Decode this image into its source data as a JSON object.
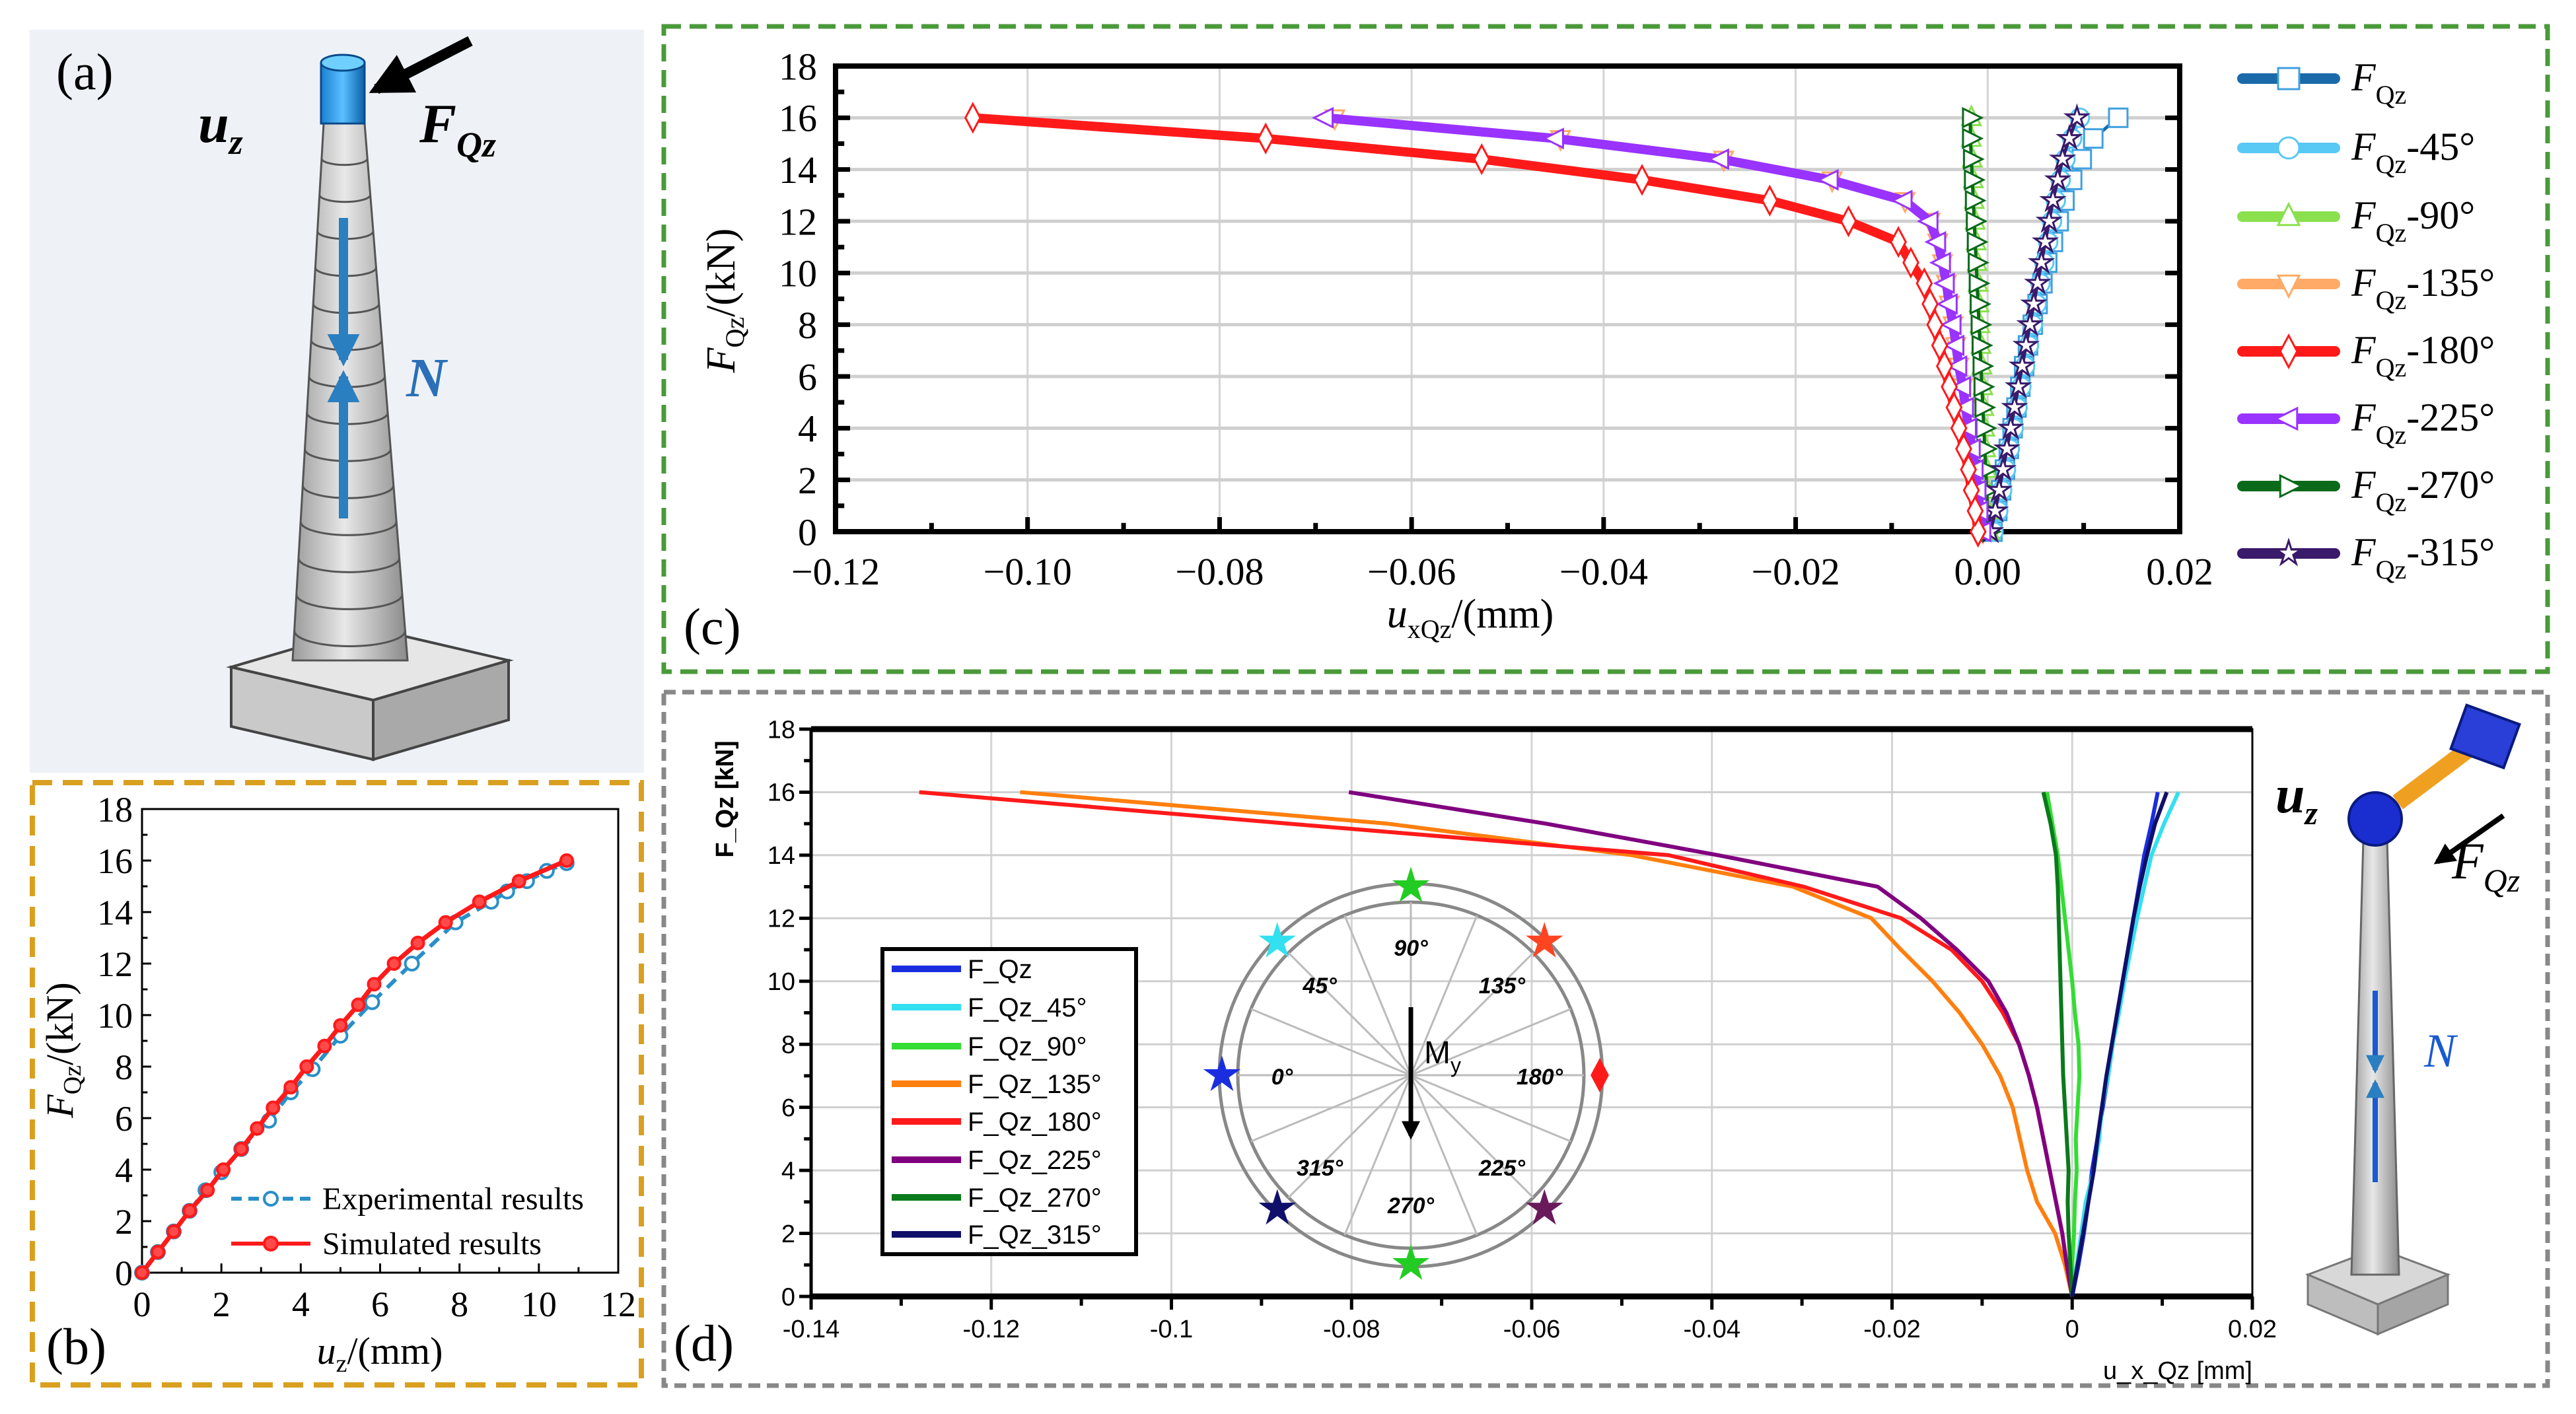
{
  "panels": {
    "a": {
      "tag": "(a)",
      "uz_main": "u",
      "uz_sub": "z",
      "fqz_main": "F",
      "fqz_sub": "Qz",
      "n_label": "N"
    },
    "b": {
      "tag": "(b)"
    },
    "c": {
      "tag": "(c)"
    },
    "d": {
      "tag": "(d)",
      "uz_main": "u",
      "uz_sub": "z",
      "fqz_main": "F",
      "fqz_sub": "Qz",
      "n_label": "N",
      "moment_main": "M",
      "moment_sub": "y",
      "angles": [
        "0°",
        "45°",
        "90°",
        "135°",
        "180°",
        "225°",
        "270°",
        "315°"
      ],
      "angle_colors": [
        "#1a2ee0",
        "#33e0f0",
        "#22cc22",
        "#ff4422",
        "#ff1a1a",
        "#6a1a5a",
        "#22cc22",
        "#10106a"
      ]
    }
  },
  "chart_data": [
    {
      "id": "b",
      "type": "line",
      "ylabel_main": "F",
      "ylabel_sub": "Qz",
      "ylabel_unit": "/(kN)",
      "xlabel_main": "u",
      "xlabel_sub": "z",
      "xlabel_unit": "/(mm)",
      "xlim": [
        0,
        12
      ],
      "ylim": [
        0,
        18
      ],
      "xticks": [
        "0",
        "2",
        "4",
        "6",
        "8",
        "10",
        "12"
      ],
      "yticks": [
        "0",
        "2",
        "4",
        "6",
        "8",
        "10",
        "12",
        "14",
        "16",
        "18"
      ],
      "legend": "bottom-right",
      "series": [
        {
          "name": "Experimental results",
          "color": "#2a8fc8",
          "style": "dashed",
          "marker": "circle",
          "x": [
            0,
            0.4,
            0.8,
            1.2,
            1.6,
            2.0,
            2.5,
            3.2,
            3.75,
            4.3,
            5.0,
            5.8,
            6.8,
            7.9,
            8.8,
            9.2,
            9.7,
            10.2,
            10.7
          ],
          "y": [
            0,
            0.8,
            1.6,
            2.4,
            3.2,
            3.9,
            4.8,
            5.9,
            7.0,
            7.9,
            9.2,
            10.5,
            12.0,
            13.6,
            14.4,
            14.8,
            15.2,
            15.6,
            15.9
          ]
        },
        {
          "name": "Simulated results",
          "color": "#ff1a1a",
          "style": "solid",
          "marker": "circle",
          "x": [
            0,
            0.4,
            0.8,
            1.2,
            1.65,
            2.05,
            2.5,
            2.9,
            3.3,
            3.75,
            4.15,
            4.6,
            5.0,
            5.45,
            5.85,
            6.35,
            6.95,
            7.65,
            8.5,
            9.5,
            10.7
          ],
          "y": [
            0,
            0.8,
            1.6,
            2.4,
            3.2,
            4.0,
            4.8,
            5.6,
            6.4,
            7.2,
            8.0,
            8.8,
            9.6,
            10.4,
            11.2,
            12.0,
            12.8,
            13.6,
            14.4,
            15.2,
            16.0
          ]
        }
      ]
    },
    {
      "id": "c",
      "type": "line",
      "ylabel_main": "F",
      "ylabel_sub": "Qz",
      "ylabel_unit": "/(kN)",
      "xlabel_main": "u",
      "xlabel_sub": "xQz",
      "xlabel_unit": "/(mm)",
      "xlim": [
        -0.12,
        0.02
      ],
      "ylim": [
        0,
        18
      ],
      "xticks": [
        "−0.12",
        "−0.10",
        "−0.08",
        "−0.06",
        "−0.04",
        "−0.02",
        "0.00",
        "0.02"
      ],
      "yticks": [
        "0",
        "2",
        "4",
        "6",
        "8",
        "10",
        "12",
        "14",
        "16",
        "18"
      ],
      "grid": true,
      "legend": "right",
      "y": [
        0,
        0.8,
        1.6,
        2.4,
        3.2,
        4.0,
        4.8,
        5.6,
        6.4,
        7.2,
        8.0,
        8.8,
        9.6,
        10.4,
        11.2,
        12.0,
        12.8,
        13.6,
        14.4,
        15.2,
        16.0
      ],
      "series": [
        {
          "name_main": "F",
          "name_sub": "Qz",
          "name_suffix": "",
          "color": "#1a6aaa",
          "marker_color": "#3fa0e0",
          "marker": "square",
          "x": [
            0.0005,
            0.001,
            0.0014,
            0.0018,
            0.0022,
            0.0026,
            0.003,
            0.0034,
            0.0038,
            0.0042,
            0.0047,
            0.0052,
            0.0057,
            0.0062,
            0.0068,
            0.0074,
            0.008,
            0.0088,
            0.0098,
            0.011,
            0.0136
          ]
        },
        {
          "name_main": "F",
          "name_sub": "Qz",
          "name_suffix": "-45°",
          "color": "#58c8f5",
          "marker_color": "#58c8f5",
          "marker": "circle",
          "x": [
            0.0006,
            0.0011,
            0.0015,
            0.0019,
            0.0023,
            0.0027,
            0.0031,
            0.0035,
            0.0039,
            0.0043,
            0.0047,
            0.0051,
            0.0055,
            0.0059,
            0.0063,
            0.0067,
            0.0071,
            0.0076,
            0.0081,
            0.0088,
            0.0096
          ]
        },
        {
          "name_main": "F",
          "name_sub": "Qz",
          "name_suffix": "-90°",
          "color": "#8be04e",
          "marker_color": "#8be04e",
          "marker": "triangle-up",
          "x": [
            0.0002,
            0.0001,
            0,
            -0.0001,
            -0.0002,
            -0.0003,
            -0.0004,
            -0.0005,
            -0.0006,
            -0.0007,
            -0.0008,
            -0.0009,
            -0.001,
            -0.0011,
            -0.0012,
            -0.0013,
            -0.0014,
            -0.0015,
            -0.0016,
            -0.0017,
            -0.0017
          ]
        },
        {
          "name_main": "F",
          "name_sub": "Qz",
          "name_suffix": "-135°",
          "color": "#ffaa66",
          "marker_color": "#ffaa66",
          "marker": "triangle-down",
          "x": [
            -0.0005,
            -0.0008,
            -0.001,
            -0.0013,
            -0.0016,
            -0.002,
            -0.0023,
            -0.0026,
            -0.003,
            -0.0033,
            -0.0036,
            -0.004,
            -0.0043,
            -0.0047,
            -0.0052,
            -0.006,
            -0.0086,
            -0.0162,
            -0.0275,
            -0.0445,
            -0.068
          ]
        },
        {
          "name_main": "F",
          "name_sub": "Qz",
          "name_suffix": "-180°",
          "color": "#ff1a1a",
          "marker_color": "#ff1a1a",
          "marker": "diamond",
          "x": [
            -0.001,
            -0.0013,
            -0.0017,
            -0.002,
            -0.0025,
            -0.003,
            -0.0035,
            -0.004,
            -0.0045,
            -0.005,
            -0.0055,
            -0.006,
            -0.0066,
            -0.008,
            -0.0093,
            -0.0145,
            -0.0227,
            -0.036,
            -0.0527,
            -0.0752,
            -0.1057
          ]
        },
        {
          "name_main": "F",
          "name_sub": "Qz",
          "name_suffix": "-225°",
          "color": "#9933ff",
          "marker_color": "#9933ff",
          "marker": "triangle-left",
          "x": [
            -0.0005,
            -0.0008,
            -0.001,
            -0.0013,
            -0.0016,
            -0.002,
            -0.0023,
            -0.0026,
            -0.003,
            -0.0033,
            -0.0036,
            -0.004,
            -0.0043,
            -0.0047,
            -0.0052,
            -0.006,
            -0.0087,
            -0.0164,
            -0.0278,
            -0.045,
            -0.069
          ]
        },
        {
          "name_main": "F",
          "name_sub": "Qz",
          "name_suffix": "-270°",
          "color": "#0a6a1a",
          "marker_color": "#0a6a1a",
          "marker": "triangle-right",
          "x": [
            0.0001,
            0,
            -0.0001,
            -0.0002,
            -0.0003,
            -0.0004,
            -0.0005,
            -0.0006,
            -0.0007,
            -0.0008,
            -0.0009,
            -0.001,
            -0.0011,
            -0.0012,
            -0.0013,
            -0.0014,
            -0.0015,
            -0.0016,
            -0.0017,
            -0.0018,
            -0.0018
          ]
        },
        {
          "name_main": "F",
          "name_sub": "Qz",
          "name_suffix": "-315°",
          "color": "#3a1a6a",
          "marker_color": "#3a1a6a",
          "marker": "star",
          "x": [
            0.0003,
            0.0008,
            0.0012,
            0.0016,
            0.002,
            0.0024,
            0.0028,
            0.0032,
            0.0036,
            0.004,
            0.0044,
            0.0048,
            0.0052,
            0.0056,
            0.006,
            0.0064,
            0.0068,
            0.0073,
            0.0078,
            0.0085,
            0.0093
          ]
        }
      ]
    },
    {
      "id": "d",
      "type": "line",
      "ylabel": "F_Qz [kN]",
      "xlabel": "u_x_Qz [mm]",
      "xlim": [
        -0.14,
        0.02
      ],
      "ylim": [
        0,
        18
      ],
      "xticks": [
        "-0.14",
        "-0.12",
        "-0.1",
        "-0.08",
        "-0.06",
        "-0.04",
        "-0.02",
        "0",
        "0.02"
      ],
      "yticks": [
        "0",
        "2",
        "4",
        "6",
        "8",
        "10",
        "12",
        "14",
        "16",
        "18"
      ],
      "grid": true,
      "legend": "left",
      "y": [
        0,
        1,
        2,
        3,
        4,
        5,
        6,
        7,
        8,
        9,
        10,
        11,
        12,
        13,
        14,
        15,
        16
      ],
      "series": [
        {
          "name": "F_Qz",
          "color": "#1a2ee0",
          "x": [
            0,
            0.0007,
            0.0013,
            0.0018,
            0.0022,
            0.0028,
            0.0034,
            0.004,
            0.0045,
            0.005,
            0.0056,
            0.0062,
            0.0068,
            0.0074,
            0.008,
            0.0088,
            0.0095
          ]
        },
        {
          "name": "F_Qz_45°",
          "color": "#33e0f0",
          "x": [
            0,
            0.0005,
            0.001,
            0.0015,
            0.0024,
            0.003,
            0.0033,
            0.004,
            0.0045,
            0.0052,
            0.0058,
            0.0065,
            0.0072,
            0.008,
            0.0088,
            0.0102,
            0.0118
          ]
        },
        {
          "name": "F_Qz_90°",
          "color": "#33dd33",
          "x": [
            0,
            0,
            0.0002,
            0.0003,
            0.0005,
            0.0004,
            0.0006,
            0.0008,
            0.0007,
            0.0003,
            0,
            -0.0004,
            -0.0008,
            -0.0012,
            -0.0016,
            -0.0022,
            -0.0028
          ]
        },
        {
          "name": "F_Qz_135°",
          "color": "#ff7f0e",
          "x": [
            0,
            -0.0008,
            -0.0019,
            -0.0039,
            -0.005,
            -0.0058,
            -0.0066,
            -0.008,
            -0.01,
            -0.0125,
            -0.0155,
            -0.019,
            -0.0223,
            -0.031,
            -0.0489,
            -0.076,
            -0.1168
          ]
        },
        {
          "name": "F_Qz_180°",
          "color": "#ff1a1a",
          "x": [
            0,
            -0.0006,
            -0.0011,
            -0.0018,
            -0.0025,
            -0.0032,
            -0.0039,
            -0.0048,
            -0.0059,
            -0.0077,
            -0.01,
            -0.0134,
            -0.019,
            -0.0298,
            -0.0448,
            -0.087,
            -0.128
          ]
        },
        {
          "name": "F_Qz_225°",
          "color": "#800080",
          "x": [
            0,
            -0.0006,
            -0.0011,
            -0.0018,
            -0.0025,
            -0.0032,
            -0.0039,
            -0.0048,
            -0.0059,
            -0.0073,
            -0.0093,
            -0.0128,
            -0.0168,
            -0.0216,
            -0.0393,
            -0.0584,
            -0.0803
          ]
        },
        {
          "name": "F_Qz_270°",
          "color": "#0a7a1a",
          "x": [
            0,
            -0.0002,
            -0.0004,
            -0.0005,
            -0.0004,
            -0.0006,
            -0.0008,
            -0.001,
            -0.0011,
            -0.0012,
            -0.0013,
            -0.0014,
            -0.0015,
            -0.0016,
            -0.0018,
            -0.0024,
            -0.0032
          ]
        },
        {
          "name": "F_Qz_315°",
          "color": "#10106a",
          "x": [
            0,
            0.0006,
            0.0012,
            0.0018,
            0.0024,
            0.0028,
            0.0033,
            0.0038,
            0.0044,
            0.005,
            0.0056,
            0.0062,
            0.0068,
            0.0075,
            0.0083,
            0.0092,
            0.0105
          ]
        }
      ]
    }
  ]
}
